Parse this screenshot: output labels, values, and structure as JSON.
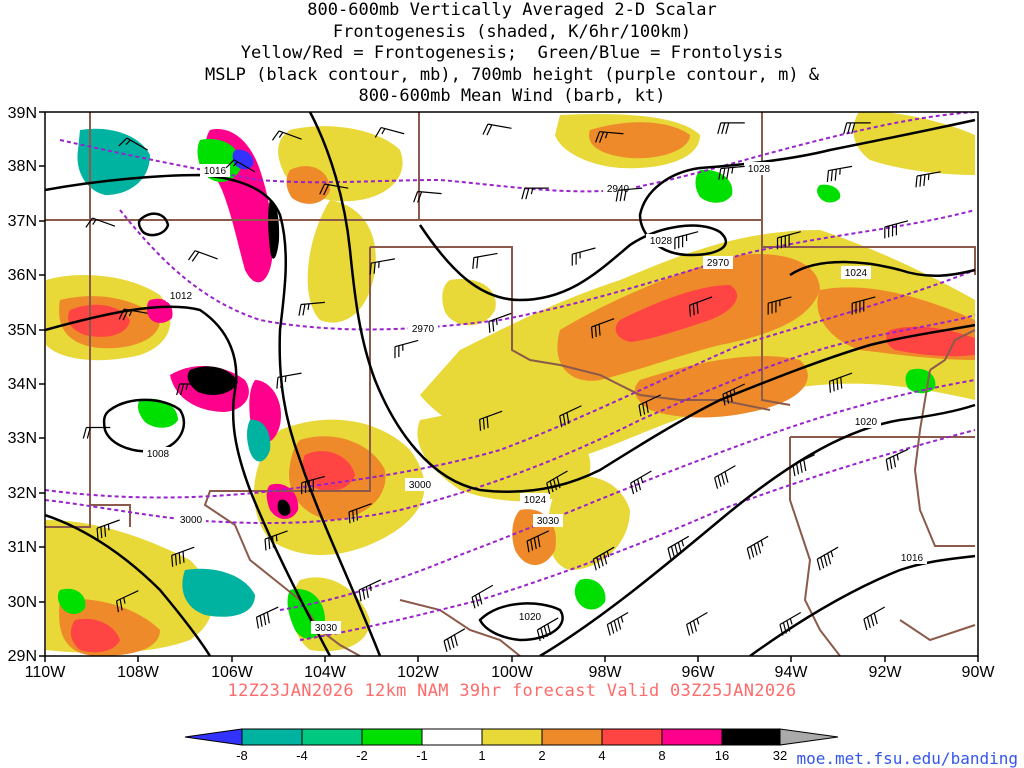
{
  "title": {
    "line1": "800-600mb Vertically Averaged 2-D Scalar",
    "line2": "Frontogenesis (shaded, K/6hr/100km)",
    "line3": "Yellow/Red = Frontogenesis;  Green/Blue = Frontolysis",
    "line4": "MSLP (black contour, mb), 700mb height (purple contour, m) &",
    "line5": "800-600mb Mean Wind (barb, kt)"
  },
  "axes": {
    "lat_labels": [
      "29N",
      "30N",
      "31N",
      "32N",
      "33N",
      "34N",
      "35N",
      "36N",
      "37N",
      "38N",
      "39N"
    ],
    "lon_labels": [
      "110W",
      "108W",
      "106W",
      "104W",
      "102W",
      "100W",
      "98W",
      "96W",
      "94W",
      "92W",
      "90W"
    ]
  },
  "mslp_labels": [
    "1016",
    "1012",
    "1008",
    "1028",
    "1028",
    "1024",
    "1024",
    "1020",
    "1020",
    "1016"
  ],
  "height_labels": [
    "2940",
    "2970",
    "2970",
    "3000",
    "3000",
    "3030",
    "3030"
  ],
  "footer": "12Z23JAN2026 12km NAM 39hr forecast Valid 03Z25JAN2026",
  "colorbar": {
    "labels": [
      "-8",
      "-4",
      "-2",
      "-1",
      "1",
      "2",
      "4",
      "8",
      "16",
      "32"
    ],
    "colors": [
      "#3333ff",
      "#00b2a0",
      "#00c880",
      "#00e000",
      "#ffffff",
      "#e8d838",
      "#ee8a2a",
      "#ff4444",
      "#ff008c",
      "#000000",
      "#aaaaaa"
    ]
  },
  "url": "moe.met.fsu.edu/banding",
  "colors": {
    "frontolysis_strong": "#00b2a0",
    "frontolysis_weak": "#00e000",
    "frontogenesis_weak": "#e8d838",
    "frontogenesis_mod": "#ee8a2a",
    "frontogenesis_strong": "#ff4444",
    "frontogenesis_max": "#ff008c",
    "mslp_contour": "#000000",
    "height_contour": "#9922cc",
    "borders": "#8b5a4a"
  },
  "wind_barbs": [
    {
      "lon": -108.4,
      "lat": 31.5,
      "dir": 250,
      "spd": 35
    },
    {
      "lon": -106.8,
      "lat": 31.0,
      "dir": 250,
      "spd": 40
    },
    {
      "lon": -108.0,
      "lat": 30.2,
      "dir": 245,
      "spd": 25
    },
    {
      "lon": -105.0,
      "lat": 29.9,
      "dir": 245,
      "spd": 40
    },
    {
      "lon": -104.8,
      "lat": 31.3,
      "dir": 250,
      "spd": 35
    },
    {
      "lon": -104.0,
      "lat": 32.3,
      "dir": 255,
      "spd": 40
    },
    {
      "lon": -103.0,
      "lat": 31.8,
      "dir": 250,
      "spd": 30
    },
    {
      "lon": -102.8,
      "lat": 30.4,
      "dir": 245,
      "spd": 35
    },
    {
      "lon": -101.0,
      "lat": 29.5,
      "dir": 240,
      "spd": 40
    },
    {
      "lon": -100.4,
      "lat": 30.3,
      "dir": 240,
      "spd": 30
    },
    {
      "lon": -99.0,
      "lat": 29.7,
      "dir": 240,
      "spd": 40
    },
    {
      "lon": -97.5,
      "lat": 29.8,
      "dir": 240,
      "spd": 45
    },
    {
      "lon": -95.8,
      "lat": 29.8,
      "dir": 240,
      "spd": 35
    },
    {
      "lon": -93.8,
      "lat": 29.8,
      "dir": 240,
      "spd": 35
    },
    {
      "lon": -92.0,
      "lat": 29.9,
      "dir": 240,
      "spd": 40
    },
    {
      "lon": -99.2,
      "lat": 31.3,
      "dir": 245,
      "spd": 40
    },
    {
      "lon": -97.8,
      "lat": 31.0,
      "dir": 240,
      "spd": 45
    },
    {
      "lon": -96.2,
      "lat": 31.2,
      "dir": 240,
      "spd": 45
    },
    {
      "lon": -94.5,
      "lat": 31.2,
      "dir": 240,
      "spd": 45
    },
    {
      "lon": -93.0,
      "lat": 31.0,
      "dir": 240,
      "spd": 45
    },
    {
      "lon": -98.8,
      "lat": 32.4,
      "dir": 240,
      "spd": 40
    },
    {
      "lon": -97.0,
      "lat": 32.4,
      "dir": 240,
      "spd": 35
    },
    {
      "lon": -95.2,
      "lat": 32.5,
      "dir": 240,
      "spd": 40
    },
    {
      "lon": -93.5,
      "lat": 32.7,
      "dir": 245,
      "spd": 40
    },
    {
      "lon": -91.5,
      "lat": 32.8,
      "dir": 245,
      "spd": 35
    },
    {
      "lon": -100.2,
      "lat": 33.5,
      "dir": 250,
      "spd": 30
    },
    {
      "lon": -98.5,
      "lat": 33.6,
      "dir": 245,
      "spd": 30
    },
    {
      "lon": -96.8,
      "lat": 33.8,
      "dir": 245,
      "spd": 30
    },
    {
      "lon": -95.0,
      "lat": 34.0,
      "dir": 245,
      "spd": 35
    },
    {
      "lon": -92.7,
      "lat": 34.2,
      "dir": 250,
      "spd": 40
    },
    {
      "lon": -102.0,
      "lat": 34.8,
      "dir": 255,
      "spd": 25
    },
    {
      "lon": -100.0,
      "lat": 35.3,
      "dir": 250,
      "spd": 25
    },
    {
      "lon": -97.8,
      "lat": 35.2,
      "dir": 250,
      "spd": 30
    },
    {
      "lon": -95.7,
      "lat": 35.6,
      "dir": 250,
      "spd": 30
    },
    {
      "lon": -94.0,
      "lat": 35.6,
      "dir": 255,
      "spd": 35
    },
    {
      "lon": -92.2,
      "lat": 35.6,
      "dir": 255,
      "spd": 40
    },
    {
      "lon": -102.5,
      "lat": 36.3,
      "dir": 260,
      "spd": 25
    },
    {
      "lon": -100.3,
      "lat": 36.4,
      "dir": 260,
      "spd": 20
    },
    {
      "lon": -98.2,
      "lat": 36.5,
      "dir": 255,
      "spd": 25
    },
    {
      "lon": -96.0,
      "lat": 36.8,
      "dir": 255,
      "spd": 35
    },
    {
      "lon": -93.8,
      "lat": 36.8,
      "dir": 255,
      "spd": 40
    },
    {
      "lon": -91.5,
      "lat": 37.0,
      "dir": 255,
      "spd": 40
    },
    {
      "lon": -103.5,
      "lat": 37.6,
      "dir": 280,
      "spd": 20
    },
    {
      "lon": -101.5,
      "lat": 37.5,
      "dir": 275,
      "spd": 20
    },
    {
      "lon": -99.2,
      "lat": 37.6,
      "dir": 270,
      "spd": 25
    },
    {
      "lon": -97.2,
      "lat": 37.6,
      "dir": 265,
      "spd": 30
    },
    {
      "lon": -95.0,
      "lat": 38.0,
      "dir": 265,
      "spd": 35
    },
    {
      "lon": -92.7,
      "lat": 38.0,
      "dir": 260,
      "spd": 35
    },
    {
      "lon": -90.8,
      "lat": 37.9,
      "dir": 260,
      "spd": 35
    },
    {
      "lon": -104.5,
      "lat": 38.5,
      "dir": 290,
      "spd": 15
    },
    {
      "lon": -102.3,
      "lat": 38.6,
      "dir": 285,
      "spd": 15
    },
    {
      "lon": -100.0,
      "lat": 38.7,
      "dir": 280,
      "spd": 20
    },
    {
      "lon": -97.6,
      "lat": 38.6,
      "dir": 275,
      "spd": 25
    },
    {
      "lon": -95.0,
      "lat": 38.8,
      "dir": 270,
      "spd": 30
    },
    {
      "lon": -92.3,
      "lat": 38.8,
      "dir": 270,
      "spd": 30
    },
    {
      "lon": -106.3,
      "lat": 36.3,
      "dir": 290,
      "spd": 20
    },
    {
      "lon": -107.8,
      "lat": 35.3,
      "dir": 280,
      "spd": 25
    },
    {
      "lon": -106.6,
      "lat": 34.0,
      "dir": 270,
      "spd": 25
    },
    {
      "lon": -108.6,
      "lat": 33.2,
      "dir": 270,
      "spd": 20
    },
    {
      "lon": -104.5,
      "lat": 34.2,
      "dir": 260,
      "spd": 25
    },
    {
      "lon": -104.0,
      "lat": 35.5,
      "dir": 265,
      "spd": 25
    },
    {
      "lon": -108.5,
      "lat": 36.9,
      "dir": 290,
      "spd": 15
    },
    {
      "lon": -105.5,
      "lat": 37.9,
      "dir": 300,
      "spd": 15
    },
    {
      "lon": -107.8,
      "lat": 38.3,
      "dir": 300,
      "spd": 15
    }
  ]
}
